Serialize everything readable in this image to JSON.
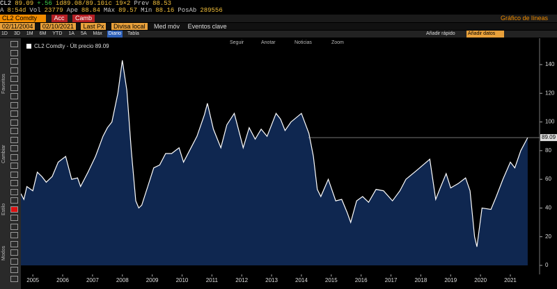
{
  "header": {
    "row1": [
      "CL2",
      "89.09",
      "+.56",
      "id89.08/89.10ic",
      "19×2",
      "Prev",
      "88.53"
    ],
    "row2": [
      "A",
      "8:54d",
      "Vol",
      "23779",
      "Ape",
      "88.84",
      "Máx",
      "89.57",
      "Mín",
      "88.16",
      "PosAb",
      "289556"
    ],
    "security": "CL2 Comdty",
    "actions": [
      "Acc",
      "Camb"
    ],
    "chart_kind": "Gráfico de líneas",
    "start_date": "02/11/2004",
    "end_date": "02/10/2021",
    "field": "Last Px",
    "currency": "Divisa local",
    "options": [
      "Med móv",
      "Eventos clave"
    ],
    "periods": [
      "1D",
      "3D",
      "1M",
      "6M",
      "YTD",
      "1A",
      "5A",
      "Máx"
    ],
    "frequency": "Diario",
    "table": "Tabla",
    "quick_add": "Añadir rápido",
    "add_data": "Añadir datos"
  },
  "sidebar": [
    "Favoritos",
    "Cambiar",
    "Estilo",
    "Modos"
  ],
  "chart_tools": [
    "Seguir",
    "Anotar",
    "Noticias",
    "Zoom"
  ],
  "chart_data": {
    "type": "line",
    "legend": "CL2 Comdty - Últ precio 89.09",
    "x": [
      2004.6,
      2004.7,
      2004.8,
      2005.0,
      2005.15,
      2005.3,
      2005.45,
      2005.65,
      2005.85,
      2006.1,
      2006.3,
      2006.5,
      2006.6,
      2006.85,
      2007.1,
      2007.35,
      2007.5,
      2007.65,
      2007.85,
      2008.0,
      2008.15,
      2008.3,
      2008.45,
      2008.55,
      2008.65,
      2008.85,
      2009.05,
      2009.25,
      2009.45,
      2009.65,
      2009.9,
      2010.05,
      2010.25,
      2010.5,
      2010.75,
      2010.85,
      2011.05,
      2011.3,
      2011.5,
      2011.75,
      2011.95,
      2012.05,
      2012.25,
      2012.45,
      2012.65,
      2012.85,
      2013.15,
      2013.3,
      2013.45,
      2013.65,
      2014.0,
      2014.25,
      2014.4,
      2014.53,
      2014.65,
      2014.9,
      2015.15,
      2015.35,
      2015.53,
      2015.65,
      2015.85,
      2016.05,
      2016.25,
      2016.5,
      2016.75,
      2017.05,
      2017.3,
      2017.5,
      2017.85,
      2018.3,
      2018.5,
      2018.65,
      2018.85,
      2019.0,
      2019.25,
      2019.5,
      2019.65,
      2019.8,
      2019.88,
      2020.05,
      2020.35,
      2020.53,
      2020.75,
      2021.0,
      2021.15,
      2021.35,
      2021.58
    ],
    "series": [
      {
        "color": "#ffffff",
        "fill": "#0f2750",
        "values": [
          50,
          46,
          55,
          52,
          65,
          62,
          58,
          62,
          72,
          76,
          60,
          61,
          55,
          65,
          76,
          90,
          96,
          100,
          120,
          143,
          122,
          80,
          45,
          40,
          42,
          55,
          68,
          70,
          78,
          78,
          82,
          72,
          80,
          90,
          105,
          113,
          95,
          82,
          98,
          106,
          90,
          82,
          96,
          88,
          95,
          90,
          106,
          102,
          94,
          100,
          106,
          92,
          76,
          53,
          48,
          60,
          45,
          46,
          37,
          30,
          45,
          48,
          44,
          53,
          52,
          45,
          52,
          60,
          66,
          74,
          46,
          54,
          64,
          54,
          57,
          61,
          52,
          20,
          13,
          40,
          39,
          48,
          60,
          72,
          68,
          80,
          89.09
        ]
      }
    ],
    "xlim": [
      2004.6,
      2021.98
    ],
    "xticks": [
      2005,
      2006,
      2007,
      2008,
      2009,
      2010,
      2011,
      2012,
      2013,
      2014,
      2015,
      2016,
      2017,
      2018,
      2019,
      2020,
      2021
    ],
    "ylim": [
      -6.3,
      158.4
    ],
    "yticks": [
      0,
      20,
      40,
      60,
      80,
      100,
      120,
      140
    ],
    "grid": false
  }
}
